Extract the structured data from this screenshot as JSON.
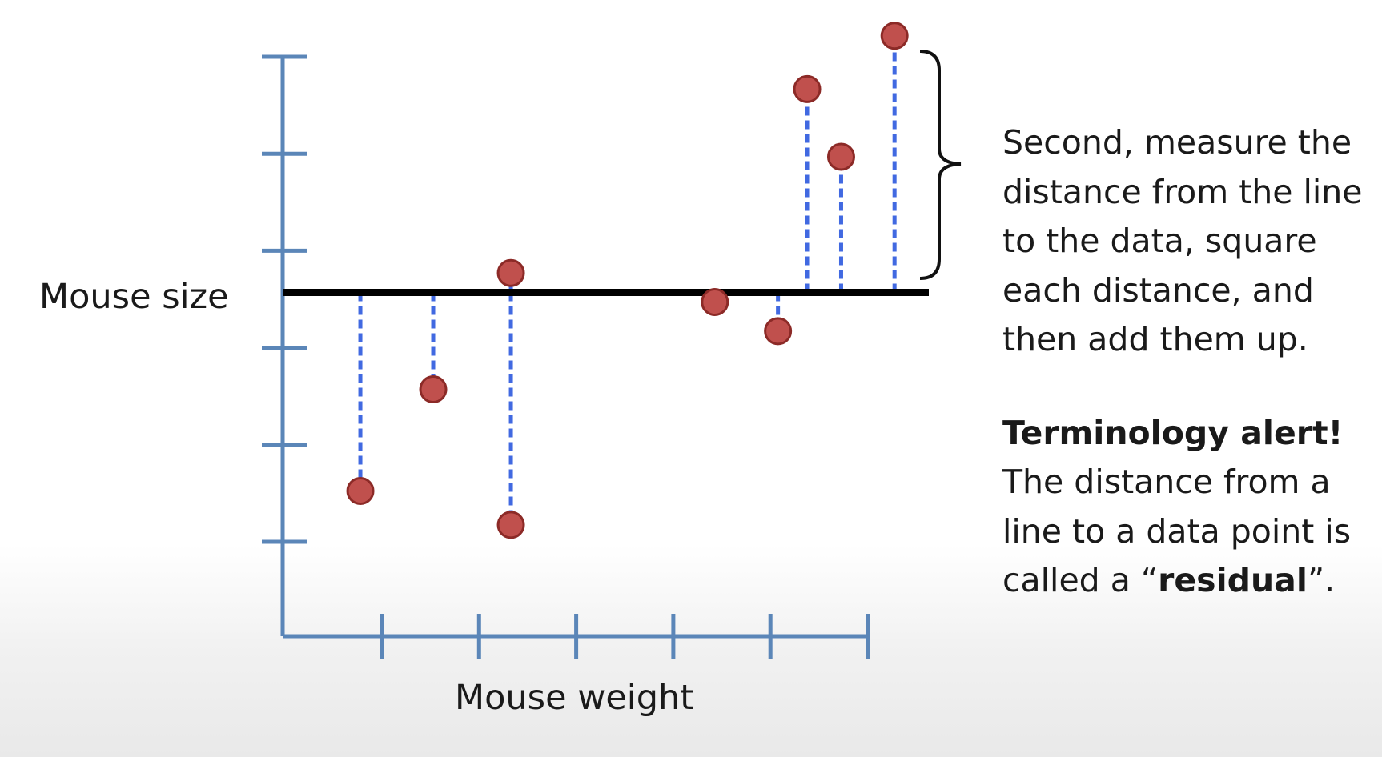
{
  "axes": {
    "y_label": "Mouse size",
    "x_label": "Mouse weight",
    "y_ticks": 6,
    "x_ticks": 6,
    "axis_color": "#5b86b8"
  },
  "chart_data": {
    "type": "scatter",
    "xlabel": "Mouse weight",
    "ylabel": "Mouse size",
    "points": [
      {
        "x": 0.8,
        "y": 1.5
      },
      {
        "x": 1.55,
        "y": 2.55
      },
      {
        "x": 2.35,
        "y": 1.15
      },
      {
        "x": 2.35,
        "y": 3.75
      },
      {
        "x": 4.45,
        "y": 3.45
      },
      {
        "x": 5.1,
        "y": 3.15
      },
      {
        "x": 5.4,
        "y": 5.65
      },
      {
        "x": 5.75,
        "y": 4.95
      },
      {
        "x": 6.3,
        "y": 6.2
      }
    ],
    "fit_line_y": 3.55,
    "x_range": [
      0,
      6
    ],
    "y_range": [
      0,
      6
    ],
    "residuals": true,
    "colors": {
      "point": "#c0504d",
      "point_edge": "#8c2a27",
      "residual": "#4169e1",
      "line": "#000000"
    }
  },
  "annotation": {
    "line1": "Second, measure the",
    "line2": "distance from the line",
    "line3": "to the data, square",
    "line4": "each distance, and",
    "line5": "then add them up.",
    "alert_title": "Terminology alert!",
    "def_line1": "The distance from a",
    "def_line2": "line to a data point is",
    "def_line3_pre": "called a “",
    "def_term": "residual",
    "def_line3_post": "”."
  }
}
